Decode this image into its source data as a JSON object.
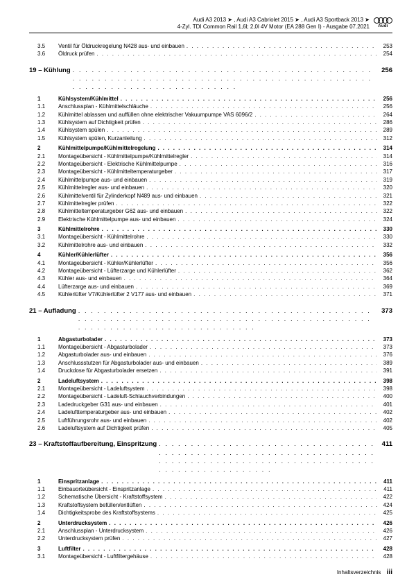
{
  "header": {
    "line1": "Audi A3 2013 ➤ , Audi A3 Cabriolet 2015 ➤ , Audi A3 Sportback 2013 ➤",
    "line2": "4-Zyl. TDI Common Rail 1,6l; 2,0l 4V Motor (EA 288 Gen I) - Ausgabe 07.2021",
    "brand": "Audi"
  },
  "pre": [
    {
      "n": "3.5",
      "t": "Ventil für Öldruckregelung N428 aus- und einbauen",
      "p": "253"
    },
    {
      "n": "3.6",
      "t": "Öldruck prüfen",
      "p": "254"
    }
  ],
  "chapters": [
    {
      "num": "19",
      "title": "Kühlung",
      "page": "256",
      "sections": [
        {
          "n": "1",
          "t": "Kühlsystem/Kühlmittel",
          "p": "256",
          "bold": true,
          "subs": [
            {
              "n": "1.1",
              "t": "Anschlussplan - Kühlmittelschläuche",
              "p": "256"
            },
            {
              "n": "1.2",
              "t": "Kühlmittel ablassen und auffüllen ohne elektrischer Vakuumpumpe VAS 6096/2",
              "p": "264"
            },
            {
              "n": "1.3",
              "t": "Kühlsystem auf Dichtigkeit prüfen",
              "p": "286"
            },
            {
              "n": "1.4",
              "t": "Kühlsystem spülen",
              "p": "289"
            },
            {
              "n": "1.5",
              "t": "Kühlsystem spülen, Kurzanleitung",
              "p": "312"
            }
          ]
        },
        {
          "n": "2",
          "t": "Kühlmittelpumpe/Kühlmittelregelung",
          "p": "314",
          "bold": true,
          "subs": [
            {
              "n": "2.1",
              "t": "Montageübersicht - Kühlmittelpumpe/Kühlmittelregler",
              "p": "314"
            },
            {
              "n": "2.2",
              "t": "Montageübersicht - Elektrische Kühlmittelpumpe",
              "p": "316"
            },
            {
              "n": "2.3",
              "t": "Montageübersicht - Kühlmitteltemperaturgeber",
              "p": "317"
            },
            {
              "n": "2.4",
              "t": "Kühlmittelpumpe aus- und einbauen",
              "p": "319"
            },
            {
              "n": "2.5",
              "t": "Kühlmittelregler aus- und einbauen",
              "p": "320"
            },
            {
              "n": "2.6",
              "t": "Kühlmittelventil für Zylinderkopf N489 aus- und einbauen",
              "p": "321"
            },
            {
              "n": "2.7",
              "t": "Kühlmittelregler prüfen",
              "p": "322"
            },
            {
              "n": "2.8",
              "t": "Kühlmitteltemperaturgeber G62 aus- und einbauen",
              "p": "322"
            },
            {
              "n": "2.9",
              "t": "Elektrische Kühlmittelpumpe aus- und einbauen",
              "p": "324"
            }
          ]
        },
        {
          "n": "3",
          "t": "Kühlmittelrohre",
          "p": "330",
          "bold": true,
          "subs": [
            {
              "n": "3.1",
              "t": "Montageübersicht - Kühlmittelrohre",
              "p": "330"
            },
            {
              "n": "3.2",
              "t": "Kühlmittelrohre aus- und einbauen",
              "p": "332"
            }
          ]
        },
        {
          "n": "4",
          "t": "Kühler/Kühlerlüfter",
          "p": "356",
          "bold": true,
          "subs": [
            {
              "n": "4.1",
              "t": "Montageübersicht - Kühler/Kühlerlüfter",
              "p": "356"
            },
            {
              "n": "4.2",
              "t": "Montageübersicht - Lüfterzarge und Kühlerlüfter",
              "p": "362"
            },
            {
              "n": "4.3",
              "t": "Kühler aus- und einbauen",
              "p": "364"
            },
            {
              "n": "4.4",
              "t": "Lüfterzarge aus- und einbauen",
              "p": "369"
            },
            {
              "n": "4.5",
              "t": "Kühlerlüfter V7/Kühlerlüfter 2 V177 aus- und einbauen",
              "p": "371"
            }
          ]
        }
      ]
    },
    {
      "num": "21",
      "title": "Aufladung",
      "page": "373",
      "sections": [
        {
          "n": "1",
          "t": "Abgasturbolader",
          "p": "373",
          "bold": true,
          "subs": [
            {
              "n": "1.1",
              "t": "Montageübersicht - Abgasturbolader",
              "p": "373"
            },
            {
              "n": "1.2",
              "t": "Abgasturbolader aus- und einbauen",
              "p": "376"
            },
            {
              "n": "1.3",
              "t": "Anschlussstutzen für Abgasturbolader aus- und einbauen",
              "p": "389"
            },
            {
              "n": "1.4",
              "t": "Druckdose für Abgasturbolader ersetzen",
              "p": "391"
            }
          ]
        },
        {
          "n": "2",
          "t": "Ladeluftsystem",
          "p": "398",
          "bold": true,
          "subs": [
            {
              "n": "2.1",
              "t": "Montageübersicht - Ladeluftsystem",
              "p": "398"
            },
            {
              "n": "2.2",
              "t": "Montageübersicht - Ladeluft-Schlauchverbindungen",
              "p": "400"
            },
            {
              "n": "2.3",
              "t": "Ladedruckgeber G31 aus- und einbauen",
              "p": "401"
            },
            {
              "n": "2.4",
              "t": "Ladelufttemperaturgeber aus- und einbauen",
              "p": "402"
            },
            {
              "n": "2.5",
              "t": "Luftführungsrohr aus- und einbauen",
              "p": "402"
            },
            {
              "n": "2.6",
              "t": "Ladeluftsystem auf Dichtigkeit prüfen",
              "p": "405"
            }
          ]
        }
      ]
    },
    {
      "num": "23",
      "title": "Kraftstoffaufbereitung, Einspritzung",
      "page": "411",
      "sections": [
        {
          "n": "1",
          "t": "Einspritzanlage",
          "p": "411",
          "bold": true,
          "subs": [
            {
              "n": "1.1",
              "t": "Einbauorteübersicht - Einspritzanlage",
              "p": "411"
            },
            {
              "n": "1.2",
              "t": "Schematische Übersicht - Kraftstoffsystem",
              "p": "422"
            },
            {
              "n": "1.3",
              "t": "Kraftstoffsystem befüllen/entlüften",
              "p": "424"
            },
            {
              "n": "1.4",
              "t": "Dichtigkeitsprobe des Kraftstoffsystems",
              "p": "425"
            }
          ]
        },
        {
          "n": "2",
          "t": "Unterdrucksystem",
          "p": "426",
          "bold": true,
          "subs": [
            {
              "n": "2.1",
              "t": "Anschlussplan - Unterdrucksystem",
              "p": "426"
            },
            {
              "n": "2.2",
              "t": "Unterdrucksystem prüfen",
              "p": "427"
            }
          ]
        },
        {
          "n": "3",
          "t": "Luftfilter",
          "p": "428",
          "bold": true,
          "subs": [
            {
              "n": "3.1",
              "t": "Montageübersicht - Luftfiltergehäuse",
              "p": "428"
            }
          ]
        }
      ]
    }
  ],
  "footer": {
    "label": "Inhaltsverzeichnis",
    "num": "iii"
  }
}
